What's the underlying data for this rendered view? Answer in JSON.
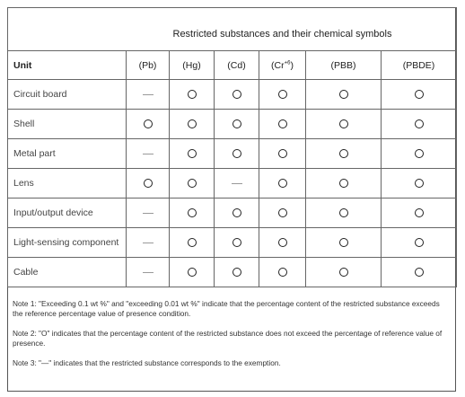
{
  "title": "Restricted substances and their chemical symbols",
  "unit_header": "Unit",
  "substances": [
    {
      "symbol": "(Pb)",
      "sup": ""
    },
    {
      "symbol": "(Hg)",
      "sup": ""
    },
    {
      "symbol": "(Cd)",
      "sup": ""
    },
    {
      "symbol": "(Cr",
      "sup": "+6",
      "suffix": ")"
    },
    {
      "symbol": "(PBB)",
      "sup": ""
    },
    {
      "symbol": "(PBDE)",
      "sup": ""
    }
  ],
  "rows": [
    {
      "unit": "Circuit board",
      "marks": [
        "—",
        "O",
        "O",
        "O",
        "O",
        "O"
      ]
    },
    {
      "unit": "Shell",
      "marks": [
        "O",
        "O",
        "O",
        "O",
        "O",
        "O"
      ]
    },
    {
      "unit": "Metal part",
      "marks": [
        "—",
        "O",
        "O",
        "O",
        "O",
        "O"
      ]
    },
    {
      "unit": "Lens",
      "marks": [
        "O",
        "O",
        "—",
        "O",
        "O",
        "O"
      ]
    },
    {
      "unit": "Input/output device",
      "marks": [
        "—",
        "O",
        "O",
        "O",
        "O",
        "O"
      ]
    },
    {
      "unit": "Light-sensing component",
      "marks": [
        "—",
        "O",
        "O",
        "O",
        "O",
        "O"
      ]
    },
    {
      "unit": "Cable",
      "marks": [
        "—",
        "O",
        "O",
        "O",
        "O",
        "O"
      ]
    }
  ],
  "notes": [
    "Note 1: \"Exceeding 0.1 wt %\" and \"exceeding 0.01 wt %\" indicate that the percentage content of the restricted substance exceeds the reference percentage value of presence condition.",
    "Note 2: \"O\" indicates that the percentage content of the restricted substance does not exceed the percentage of reference value of presence.",
    "Note 3: \"—\" indicates that the restricted substance corresponds to the exemption."
  ]
}
